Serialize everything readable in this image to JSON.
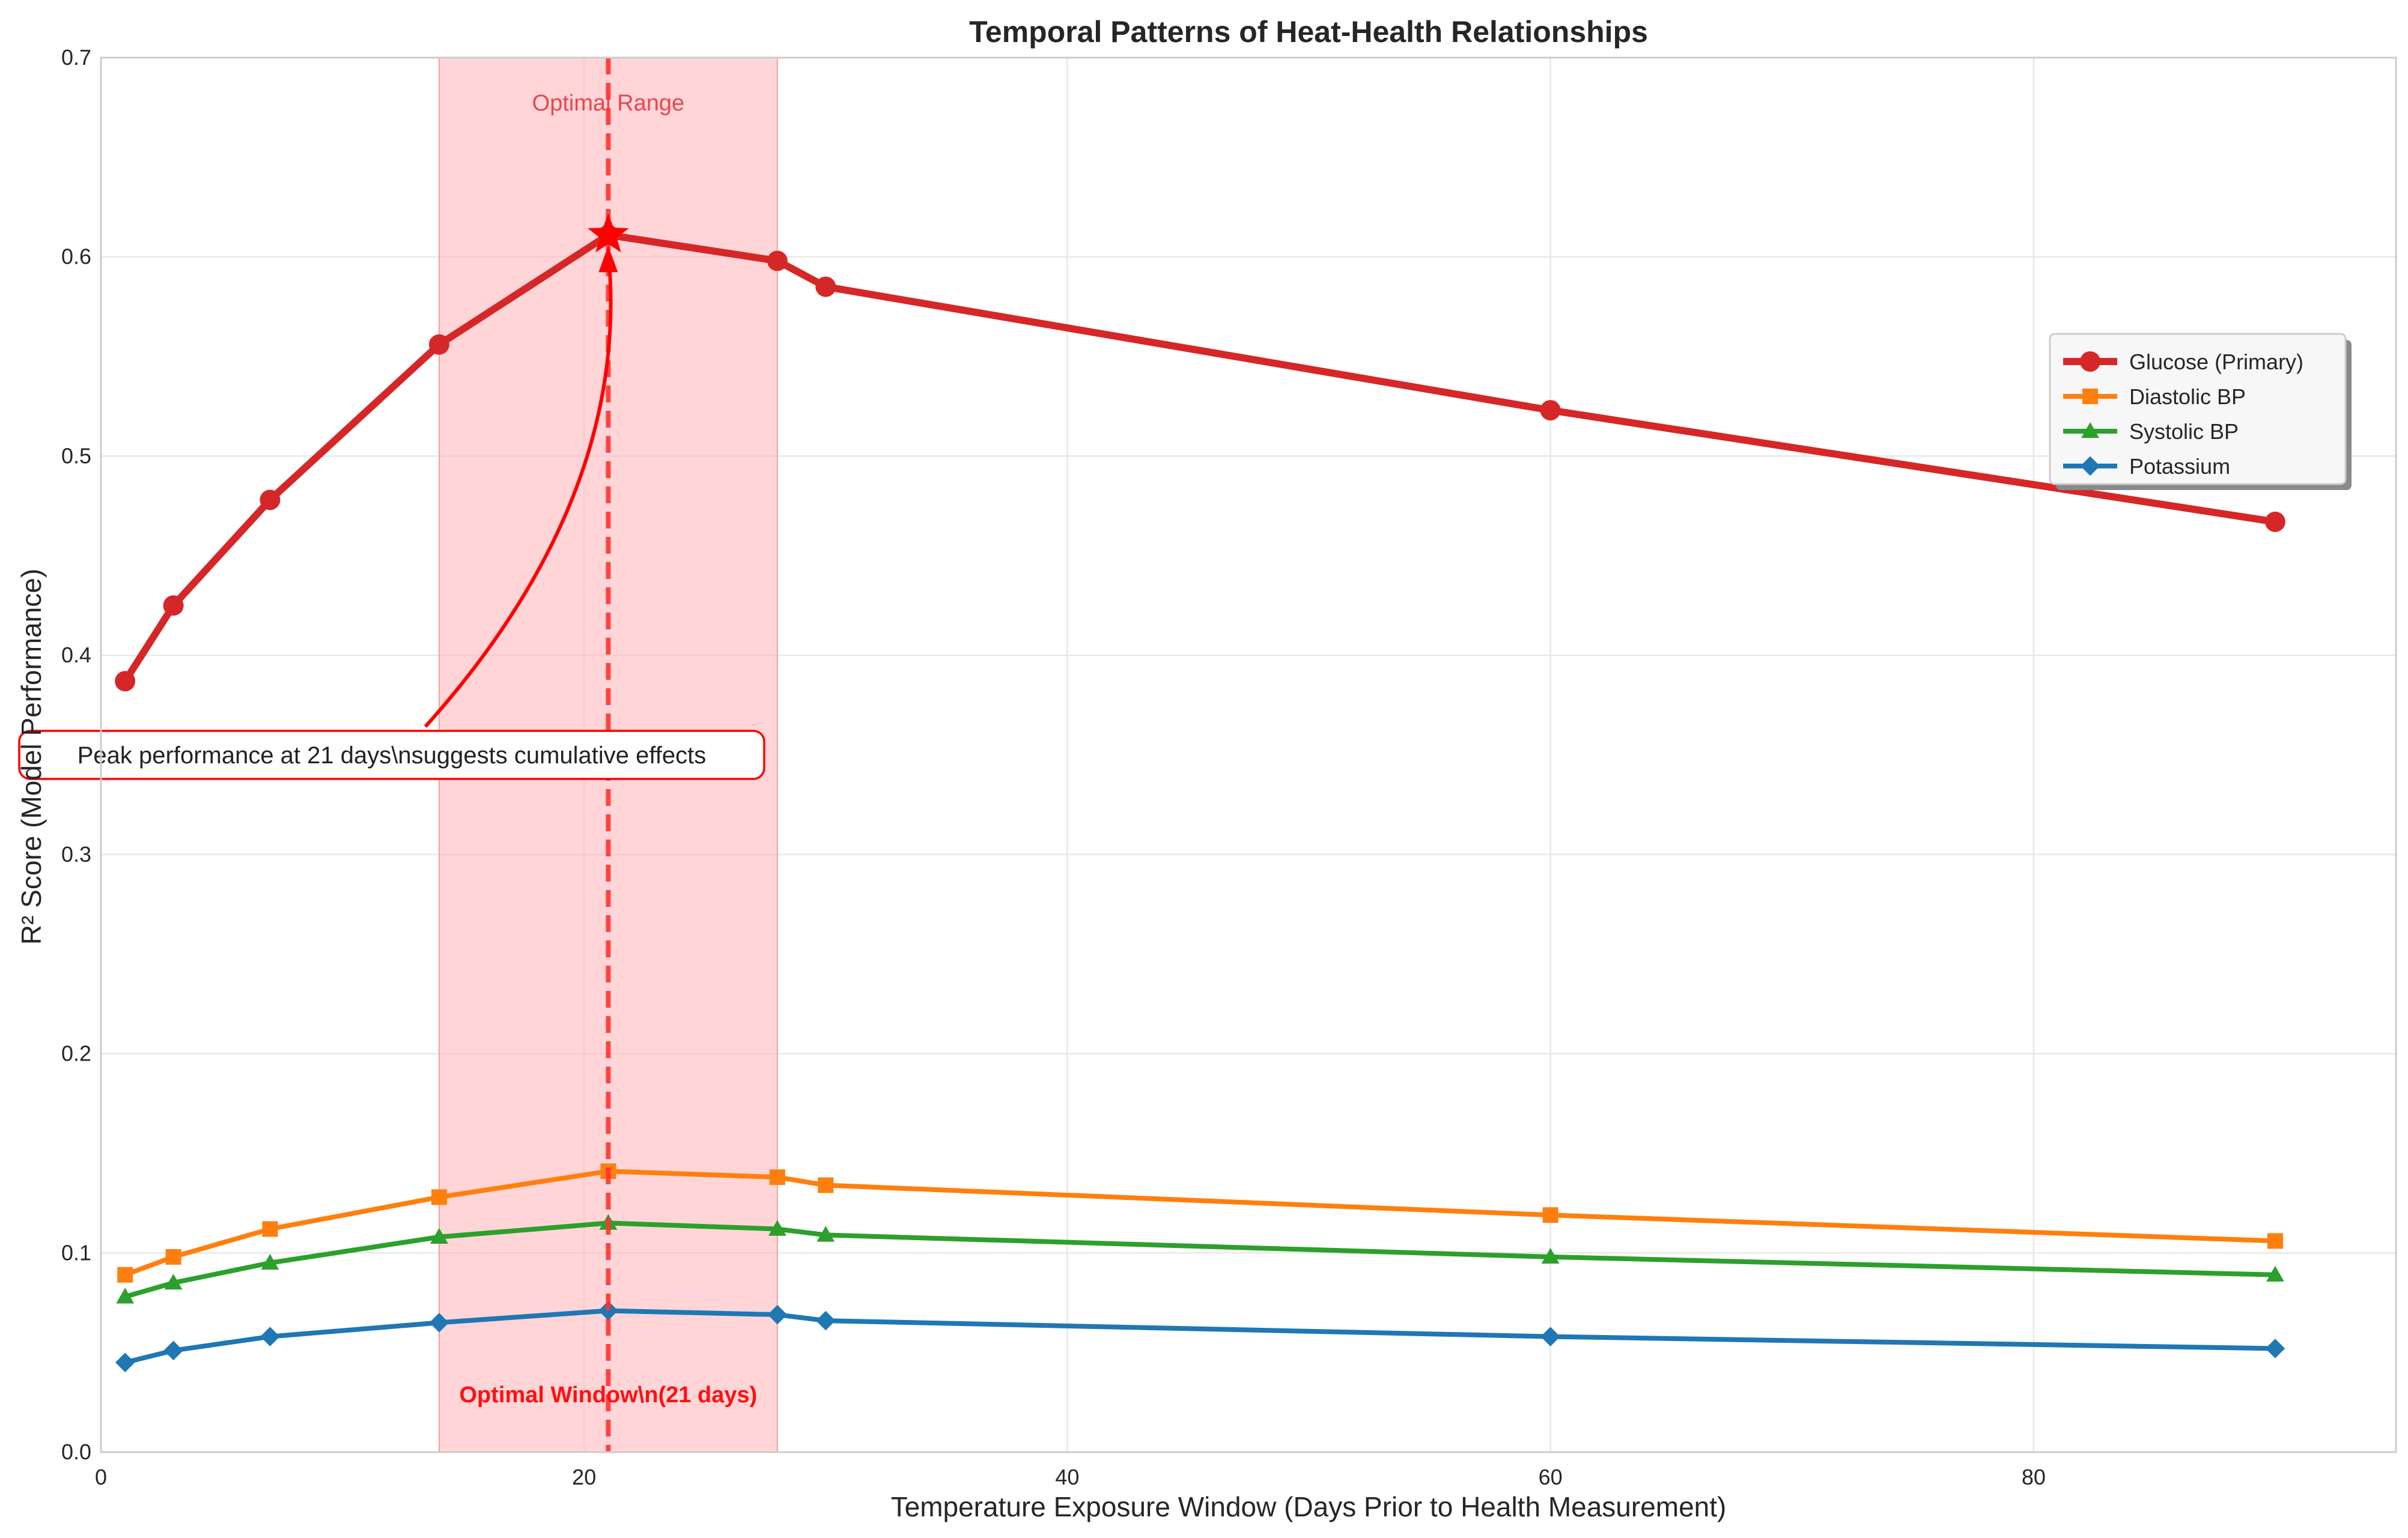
{
  "chart_data": {
    "type": "line",
    "title": "Temporal Patterns of Heat-Health Relationships",
    "xlabel": "Temperature Exposure Window (Days Prior to Health Measurement)",
    "ylabel": "R² Score (Model Performance)",
    "xlim": [
      0,
      95
    ],
    "ylim": [
      0,
      0.7
    ],
    "xticks": [
      0,
      20,
      40,
      60,
      80
    ],
    "xtick_labels": [
      "0",
      "20",
      "40",
      "60",
      "80"
    ],
    "yticks": [
      0.0,
      0.1,
      0.2,
      0.3,
      0.4,
      0.5,
      0.6,
      0.7
    ],
    "ytick_labels": [
      "0.0",
      "0.1",
      "0.2",
      "0.3",
      "0.4",
      "0.5",
      "0.6",
      "0.7"
    ],
    "grid": true,
    "legend_position": "upper-right",
    "x": [
      1,
      3,
      7,
      14,
      21,
      28,
      30,
      60,
      90
    ],
    "series": [
      {
        "name": "Glucose (Primary)",
        "color": "#d62728",
        "marker": "circle",
        "values": [
          0.387,
          0.425,
          0.478,
          0.556,
          0.611,
          0.598,
          0.585,
          0.523,
          0.467
        ]
      },
      {
        "name": "Diastolic BP",
        "color": "#ff7f0e",
        "marker": "square",
        "values": [
          0.089,
          0.098,
          0.112,
          0.128,
          0.141,
          0.138,
          0.134,
          0.119,
          0.106
        ]
      },
      {
        "name": "Systolic BP",
        "color": "#2ca02c",
        "marker": "triangle",
        "values": [
          0.078,
          0.085,
          0.095,
          0.108,
          0.115,
          0.112,
          0.109,
          0.098,
          0.089
        ]
      },
      {
        "name": "Potassium",
        "color": "#1f77b4",
        "marker": "diamond",
        "values": [
          0.045,
          0.051,
          0.058,
          0.065,
          0.071,
          0.069,
          0.066,
          0.058,
          0.052
        ]
      }
    ],
    "highlight_range": {
      "x_start": 14,
      "x_end": 28,
      "label": "Optimal Range",
      "color": "#ffb3b6"
    },
    "vertical_line": {
      "x": 21,
      "label": "Optimal Window\\n(21 days)",
      "color": "#ff3333"
    },
    "peak_marker": {
      "x": 21,
      "y": 0.611,
      "color": "#ff0000"
    },
    "annotation": {
      "text": "Peak performance at 21 days\\nsuggests cumulative effects",
      "x": 21,
      "y": 0.611,
      "box_x": -1,
      "box_y": 0.35,
      "color": "#ff0000"
    }
  }
}
